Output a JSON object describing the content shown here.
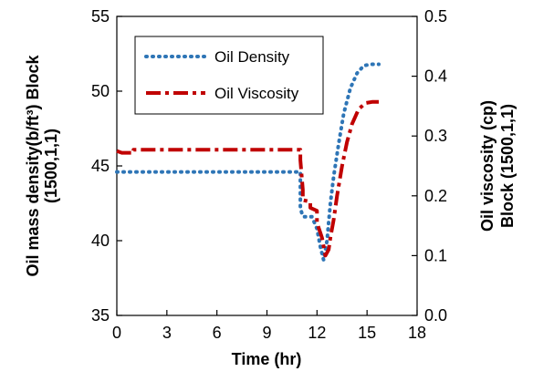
{
  "chart_data": {
    "type": "line",
    "xlabel": "Time (hr)",
    "ylabel_left_line1": "Oil mass density(b/ft³) Block",
    "ylabel_left_line2": "(1500,1,1)",
    "ylabel_right_line1": "Oil viscosity (cp)",
    "ylabel_right_line2": "Block (1500,1,1)",
    "xlim": [
      0,
      18
    ],
    "ylim_left": [
      35,
      55
    ],
    "ylim_right": [
      0.0,
      0.5
    ],
    "x_ticks": [
      "0",
      "3",
      "6",
      "9",
      "12",
      "15",
      "18"
    ],
    "y_left_ticks": [
      "35",
      "40",
      "45",
      "50",
      "55"
    ],
    "y_right_ticks": [
      "0.0",
      "0.1",
      "0.2",
      "0.3",
      "0.4",
      "0.5"
    ],
    "legend_position": "top-left",
    "series": [
      {
        "name": "Oil Density",
        "axis": "left",
        "color": "#2e75b6",
        "style": "dotted",
        "x": [
          0,
          11.0,
          11.0,
          11.1,
          11.2,
          11.4,
          11.7,
          12.0,
          12.2,
          12.4,
          12.6,
          12.8,
          13.0,
          13.3,
          13.6,
          14.0,
          14.4,
          14.8,
          15.2,
          15.7
        ],
        "y": [
          44.6,
          44.6,
          42.2,
          41.8,
          41.6,
          41.6,
          41.6,
          40.8,
          39.6,
          38.7,
          40.0,
          42.5,
          44.3,
          46.5,
          48.5,
          50.2,
          51.2,
          51.7,
          51.8,
          51.8
        ]
      },
      {
        "name": "Oil Viscosity",
        "axis": "right",
        "color": "#c00000",
        "style": "long-dash-dot",
        "x": [
          0,
          0.3,
          1.0,
          1.0,
          11.0,
          11.0,
          11.15,
          11.15,
          11.6,
          11.6,
          12.0,
          12.0,
          12.3,
          12.5,
          12.7,
          12.8,
          13.0,
          13.2,
          13.5,
          13.8,
          14.1,
          14.5,
          14.9,
          15.3,
          15.7
        ],
        "y": [
          0.275,
          0.272,
          0.272,
          0.277,
          0.277,
          0.26,
          0.21,
          0.193,
          0.19,
          0.18,
          0.175,
          0.155,
          0.13,
          0.1,
          0.11,
          0.13,
          0.16,
          0.2,
          0.25,
          0.29,
          0.32,
          0.345,
          0.355,
          0.357,
          0.357
        ]
      }
    ]
  }
}
